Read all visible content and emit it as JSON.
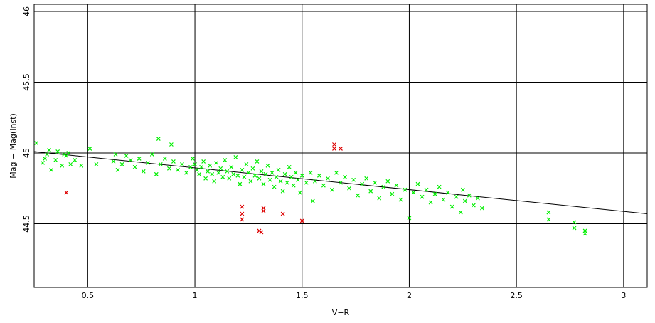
{
  "chart_data": {
    "type": "scatter",
    "title": "",
    "xlabel": "V−R",
    "ylabel": "Mag − Mag(Inst)",
    "xlim": [
      0.25,
      3.11
    ],
    "ylim": [
      44.05,
      46.05
    ],
    "grid": true,
    "xticks": [
      0.5,
      1,
      1.5,
      2,
      2.5,
      3
    ],
    "xtick_labels": [
      "0.5",
      "1",
      "1.5",
      "2",
      "2.5",
      "3"
    ],
    "yticks": [
      44.5,
      45,
      45.5,
      46
    ],
    "ytick_labels": [
      "44.5",
      "45",
      "45.5",
      "46"
    ],
    "fit_line": {
      "x": [
        0.25,
        3.11
      ],
      "y": [
        45.01,
        44.57
      ]
    },
    "series": [
      {
        "role": "used",
        "color": "#00ee00",
        "marker": "x",
        "points": [
          [
            0.26,
            45.07
          ],
          [
            0.29,
            44.93
          ],
          [
            0.3,
            44.96
          ],
          [
            0.31,
            44.99
          ],
          [
            0.32,
            45.02
          ],
          [
            0.33,
            44.88
          ],
          [
            0.35,
            44.95
          ],
          [
            0.36,
            45.01
          ],
          [
            0.38,
            44.91
          ],
          [
            0.39,
            44.99
          ],
          [
            0.4,
            44.98
          ],
          [
            0.41,
            45.0
          ],
          [
            0.42,
            44.92
          ],
          [
            0.44,
            44.95
          ],
          [
            0.47,
            44.91
          ],
          [
            0.51,
            45.03
          ],
          [
            0.54,
            44.92
          ],
          [
            0.62,
            44.94
          ],
          [
            0.63,
            44.99
          ],
          [
            0.64,
            44.88
          ],
          [
            0.66,
            44.92
          ],
          [
            0.68,
            44.98
          ],
          [
            0.7,
            44.95
          ],
          [
            0.72,
            44.9
          ],
          [
            0.74,
            44.96
          ],
          [
            0.76,
            44.87
          ],
          [
            0.78,
            44.93
          ],
          [
            0.8,
            44.99
          ],
          [
            0.82,
            44.85
          ],
          [
            0.83,
            45.1
          ],
          [
            0.84,
            44.92
          ],
          [
            0.86,
            44.96
          ],
          [
            0.88,
            44.89
          ],
          [
            0.89,
            45.06
          ],
          [
            0.9,
            44.94
          ],
          [
            0.92,
            44.88
          ],
          [
            0.94,
            44.92
          ],
          [
            0.96,
            44.86
          ],
          [
            0.98,
            44.9
          ],
          [
            0.99,
            44.96
          ],
          [
            1.0,
            44.92
          ],
          [
            1.01,
            44.88
          ],
          [
            1.02,
            44.85
          ],
          [
            1.03,
            44.9
          ],
          [
            1.04,
            44.94
          ],
          [
            1.05,
            44.82
          ],
          [
            1.06,
            44.87
          ],
          [
            1.07,
            44.91
          ],
          [
            1.08,
            44.85
          ],
          [
            1.09,
            44.8
          ],
          [
            1.1,
            44.93
          ],
          [
            1.11,
            44.86
          ],
          [
            1.12,
            44.89
          ],
          [
            1.13,
            44.83
          ],
          [
            1.14,
            44.95
          ],
          [
            1.15,
            44.87
          ],
          [
            1.16,
            44.82
          ],
          [
            1.17,
            44.9
          ],
          [
            1.18,
            44.85
          ],
          [
            1.19,
            44.97
          ],
          [
            1.2,
            44.84
          ],
          [
            1.21,
            44.78
          ],
          [
            1.22,
            44.88
          ],
          [
            1.23,
            44.83
          ],
          [
            1.24,
            44.92
          ],
          [
            1.25,
            44.86
          ],
          [
            1.26,
            44.8
          ],
          [
            1.27,
            44.89
          ],
          [
            1.28,
            44.84
          ],
          [
            1.29,
            44.94
          ],
          [
            1.3,
            44.82
          ],
          [
            1.31,
            44.87
          ],
          [
            1.32,
            44.78
          ],
          [
            1.33,
            44.85
          ],
          [
            1.34,
            44.91
          ],
          [
            1.35,
            44.81
          ],
          [
            1.36,
            44.86
          ],
          [
            1.37,
            44.76
          ],
          [
            1.38,
            44.83
          ],
          [
            1.39,
            44.88
          ],
          [
            1.4,
            44.8
          ],
          [
            1.41,
            44.73
          ],
          [
            1.42,
            44.85
          ],
          [
            1.43,
            44.79
          ],
          [
            1.44,
            44.9
          ],
          [
            1.45,
            44.83
          ],
          [
            1.46,
            44.77
          ],
          [
            1.47,
            44.86
          ],
          [
            1.48,
            44.81
          ],
          [
            1.49,
            44.72
          ],
          [
            1.5,
            44.84
          ],
          [
            1.52,
            44.79
          ],
          [
            1.54,
            44.86
          ],
          [
            1.55,
            44.66
          ],
          [
            1.56,
            44.8
          ],
          [
            1.58,
            44.84
          ],
          [
            1.6,
            44.77
          ],
          [
            1.62,
            44.82
          ],
          [
            1.64,
            44.74
          ],
          [
            1.66,
            44.86
          ],
          [
            1.68,
            44.79
          ],
          [
            1.7,
            44.83
          ],
          [
            1.72,
            44.75
          ],
          [
            1.74,
            44.81
          ],
          [
            1.76,
            44.7
          ],
          [
            1.78,
            44.78
          ],
          [
            1.8,
            44.82
          ],
          [
            1.82,
            44.73
          ],
          [
            1.84,
            44.79
          ],
          [
            1.86,
            44.68
          ],
          [
            1.88,
            44.76
          ],
          [
            1.9,
            44.8
          ],
          [
            1.92,
            44.71
          ],
          [
            1.94,
            44.77
          ],
          [
            1.96,
            44.67
          ],
          [
            1.98,
            44.74
          ],
          [
            2.0,
            44.54
          ],
          [
            2.02,
            44.72
          ],
          [
            2.04,
            44.78
          ],
          [
            2.06,
            44.69
          ],
          [
            2.08,
            44.74
          ],
          [
            2.1,
            44.65
          ],
          [
            2.12,
            44.71
          ],
          [
            2.14,
            44.76
          ],
          [
            2.16,
            44.67
          ],
          [
            2.18,
            44.72
          ],
          [
            2.2,
            44.62
          ],
          [
            2.22,
            44.69
          ],
          [
            2.24,
            44.58
          ],
          [
            2.25,
            44.74
          ],
          [
            2.26,
            44.66
          ],
          [
            2.28,
            44.7
          ],
          [
            2.3,
            44.63
          ],
          [
            2.32,
            44.68
          ],
          [
            2.34,
            44.61
          ],
          [
            2.65,
            44.58
          ],
          [
            2.65,
            44.53
          ],
          [
            2.77,
            44.51
          ],
          [
            2.77,
            44.47
          ],
          [
            2.82,
            44.45
          ],
          [
            2.82,
            44.43
          ]
        ]
      },
      {
        "role": "rejected",
        "color": "#dd0000",
        "marker": "x",
        "points": [
          [
            0.4,
            44.72
          ],
          [
            1.22,
            44.62
          ],
          [
            1.22,
            44.57
          ],
          [
            1.22,
            44.53
          ],
          [
            1.3,
            44.45
          ],
          [
            1.31,
            44.44
          ],
          [
            1.32,
            44.61
          ],
          [
            1.32,
            44.59
          ],
          [
            1.41,
            44.57
          ],
          [
            1.5,
            44.52
          ],
          [
            1.65,
            45.06
          ],
          [
            1.65,
            45.03
          ],
          [
            1.68,
            45.03
          ]
        ]
      }
    ]
  }
}
